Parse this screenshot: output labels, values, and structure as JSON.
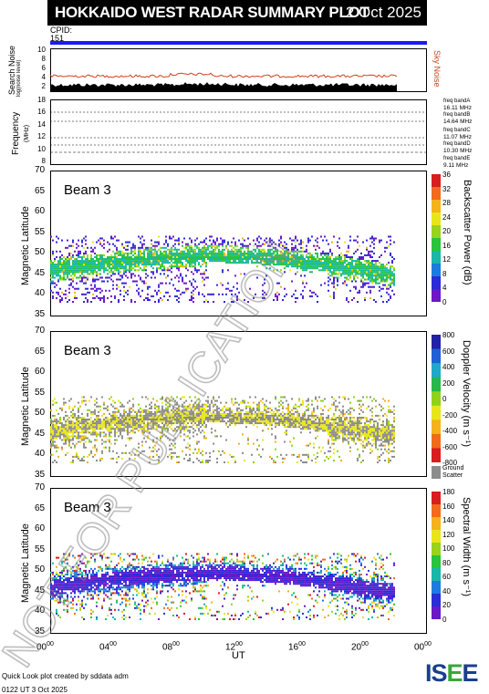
{
  "header": {
    "title": "HOKKAIDO WEST RADAR SUMMARY PLOT",
    "date": "2 Oct 2025",
    "cpid_label": "CPID:",
    "cpid_value": "151"
  },
  "noise_panel": {
    "ylabel": "Search Noise",
    "ylabel_sub": "log(noise level)",
    "yticks": [
      "10",
      "8",
      "6",
      "4",
      "2"
    ],
    "right_label": "Sky Noise"
  },
  "freq_panel": {
    "ylabel": "Frequency",
    "unit": "(MHz)",
    "yticks": [
      "18",
      "16",
      "14",
      "12",
      "10",
      "8"
    ],
    "bands": [
      {
        "label": "freq bandA",
        "value": "16.11 MHz"
      },
      {
        "label": "freq bandB",
        "value": "14.64 MHz"
      },
      {
        "label": "freq bandC",
        "value": "11.07 MHz"
      },
      {
        "label": "freq bandD",
        "value": "10.30 MHz"
      },
      {
        "label": "freq bandE",
        "value": "9.11 MHz"
      }
    ]
  },
  "panels": [
    {
      "beam_label": "Beam  3",
      "ylabel": "Magnetic Latitude",
      "yticks": [
        "70",
        "65",
        "60",
        "55",
        "50",
        "45",
        "40",
        "35"
      ],
      "colorbar_label": "Backscatter Power (dB)",
      "colorbar_ticks": [
        "36",
        "32",
        "28",
        "24",
        "20",
        "16",
        "12",
        "8",
        "4",
        "0"
      ],
      "colors": [
        "#d81e1e",
        "#f26a1b",
        "#f5b21b",
        "#e8e61a",
        "#97d41a",
        "#28c43b",
        "#18b7a9",
        "#1c7be0",
        "#2b2bd8",
        "#6a18c8"
      ]
    },
    {
      "beam_label": "Beam  3",
      "ylabel": "Magnetic Latitude",
      "yticks": [
        "70",
        "65",
        "60",
        "55",
        "50",
        "45",
        "40",
        "35"
      ],
      "colorbar_label": "Doppler Velocity (m s⁻¹)",
      "colorbar_ticks": [
        "800",
        "600",
        "400",
        "200",
        "0",
        "-200",
        "-400",
        "-600",
        "-800"
      ],
      "colors": [
        "#2121a8",
        "#1f5fd8",
        "#1fa8c8",
        "#27b84a",
        "#8fd21a",
        "#e8e61a",
        "#f5b21b",
        "#f06a1a",
        "#d81e1e"
      ],
      "ground_scatter_label": "Ground Scatter",
      "ground_color": "#8c8c8c"
    },
    {
      "beam_label": "Beam  3",
      "ylabel": "Magnetic Latitude",
      "yticks": [
        "70",
        "65",
        "60",
        "55",
        "50",
        "45",
        "40",
        "35"
      ],
      "colorbar_label": "Spectral Width (m s⁻¹)",
      "colorbar_ticks": [
        "180",
        "160",
        "140",
        "120",
        "100",
        "80",
        "60",
        "40",
        "20",
        "0"
      ],
      "colors": [
        "#d81e1e",
        "#f26a1b",
        "#f5b21b",
        "#e8e61a",
        "#97d41a",
        "#28c43b",
        "#18b7a9",
        "#1c7be0",
        "#2b2bd8",
        "#6a18c8"
      ]
    }
  ],
  "xaxis": {
    "label": "UT",
    "ticks": [
      {
        "h": "00",
        "m": "00"
      },
      {
        "h": "04",
        "m": "00"
      },
      {
        "h": "08",
        "m": "00"
      },
      {
        "h": "12",
        "m": "00"
      },
      {
        "h": "16",
        "m": "00"
      },
      {
        "h": "20",
        "m": "00"
      },
      {
        "h": "00",
        "m": "00"
      }
    ]
  },
  "watermark": "NOT FOR PUBLICATION",
  "footer": {
    "line1": "Quick Look plot created by sddata adm",
    "line2": "0122 UT  3 Oct 2025",
    "logo": "ISEE"
  }
}
